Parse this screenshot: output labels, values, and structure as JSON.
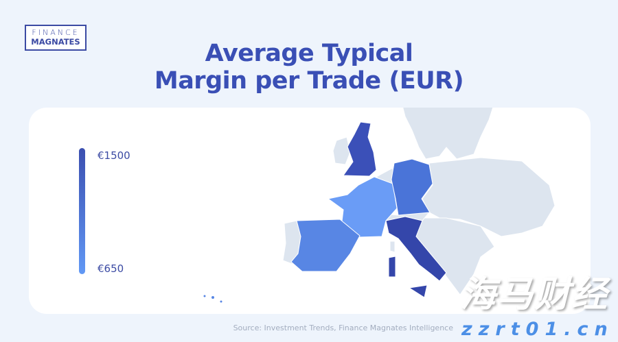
{
  "logo": {
    "line1": "FINANCE",
    "line2": "MAGNATES"
  },
  "title": {
    "line1": "Average Typical",
    "line2": "Margin per Trade (EUR)"
  },
  "legend": {
    "max_label": "€1500",
    "min_label": "€650",
    "max_color": "#3b4fb0",
    "min_color": "#6198f5"
  },
  "map_data": {
    "type": "choropleth",
    "region": "Europe",
    "value_range": [
      650,
      1500
    ],
    "highlighted": [
      {
        "country": "United Kingdom",
        "color": "#3b50b8"
      },
      {
        "country": "Italy",
        "color": "#3446aa"
      },
      {
        "country": "Germany",
        "color": "#4a74d8"
      },
      {
        "country": "Spain",
        "color": "#5886e4"
      },
      {
        "country": "France",
        "color": "#6a9cf6"
      }
    ],
    "other_color": "#dde5ef"
  },
  "source": "Source: Investment Trends, Finance Magnates Intelligence",
  "watermark": {
    "cn": "海马财经",
    "url": "zzrt01.cn"
  }
}
